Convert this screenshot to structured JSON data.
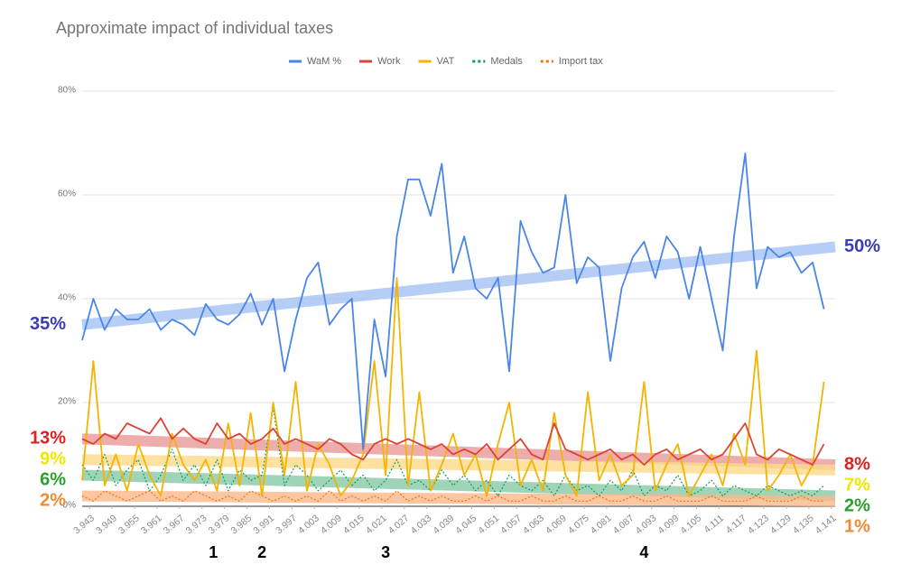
{
  "chart_data": {
    "type": "line",
    "title": "Approximate impact of individual taxes",
    "x": [
      3.941,
      3.944,
      3.947,
      3.95,
      3.953,
      3.956,
      3.959,
      3.962,
      3.965,
      3.968,
      3.971,
      3.974,
      3.977,
      3.98,
      3.983,
      3.986,
      3.989,
      3.992,
      3.995,
      3.998,
      4.001,
      4.004,
      4.007,
      4.01,
      4.013,
      4.016,
      4.019,
      4.022,
      4.025,
      4.028,
      4.031,
      4.034,
      4.037,
      4.04,
      4.043,
      4.046,
      4.049,
      4.052,
      4.055,
      4.058,
      4.061,
      4.064,
      4.067,
      4.07,
      4.073,
      4.076,
      4.079,
      4.082,
      4.085,
      4.088,
      4.091,
      4.094,
      4.097,
      4.1,
      4.103,
      4.106,
      4.109,
      4.112,
      4.115,
      4.118,
      4.121,
      4.124,
      4.127,
      4.13,
      4.133,
      4.136,
      4.139
    ],
    "xlim": [
      3.941,
      4.142
    ],
    "xticks": [
      3.943,
      3.949,
      3.955,
      3.961,
      3.967,
      3.973,
      3.979,
      3.985,
      3.991,
      3.997,
      4.003,
      4.009,
      4.015,
      4.021,
      4.027,
      4.033,
      4.039,
      4.045,
      4.051,
      4.057,
      4.063,
      4.069,
      4.075,
      4.081,
      4.087,
      4.093,
      4.099,
      4.105,
      4.111,
      4.117,
      4.123,
      4.129,
      4.135,
      4.141
    ],
    "ylim": [
      0,
      80
    ],
    "yticks": [
      {
        "value": 0,
        "label": "0%"
      },
      {
        "value": 20,
        "label": "20%"
      },
      {
        "value": 40,
        "label": "40%"
      },
      {
        "value": 60,
        "label": "60%"
      },
      {
        "value": 80,
        "label": "80%"
      }
    ],
    "grid": true,
    "legend": "top",
    "series": [
      {
        "name": "WaM %",
        "color": "#4a86e8",
        "dotted": false,
        "values": [
          32,
          40,
          34,
          38,
          36,
          36,
          38,
          34,
          36,
          35,
          33,
          39,
          36,
          35,
          37,
          41,
          35,
          40,
          26,
          36,
          44,
          47,
          35,
          38,
          40,
          11,
          36,
          25,
          52,
          63,
          63,
          56,
          66,
          45,
          52,
          42,
          40,
          44,
          26,
          55,
          49,
          45,
          46,
          60,
          43,
          48,
          46,
          28,
          42,
          48,
          51,
          44,
          52,
          49,
          40,
          50,
          40,
          30,
          52,
          68,
          42,
          50,
          48,
          49,
          45,
          47,
          38
        ]
      },
      {
        "name": "Work",
        "color": "#db4437",
        "dotted": false,
        "values": [
          13,
          12,
          14,
          13,
          16,
          15,
          14,
          17,
          13,
          15,
          13,
          12,
          16,
          13,
          14,
          12,
          13,
          15,
          12,
          13,
          12,
          11,
          13,
          12,
          10,
          9,
          12,
          13,
          12,
          13,
          12,
          11,
          12,
          10,
          11,
          10,
          12,
          9,
          11,
          13,
          10,
          9,
          16,
          11,
          10,
          9,
          10,
          11,
          9,
          10,
          8,
          10,
          11,
          9,
          10,
          11,
          9,
          10,
          13,
          16,
          10,
          9,
          11,
          10,
          9,
          8,
          12
        ]
      },
      {
        "name": "VAT",
        "color": "#f4b400",
        "dotted": false,
        "values": [
          5,
          28,
          4,
          10,
          3,
          12,
          6,
          2,
          14,
          8,
          5,
          9,
          3,
          16,
          4,
          18,
          2,
          20,
          6,
          24,
          3,
          12,
          8,
          2,
          5,
          10,
          28,
          6,
          44,
          4,
          22,
          3,
          8,
          14,
          6,
          10,
          2,
          12,
          20,
          4,
          9,
          3,
          18,
          6,
          2,
          22,
          5,
          10,
          4,
          6,
          24,
          3,
          8,
          12,
          2,
          6,
          10,
          4,
          14,
          8,
          30,
          3,
          6,
          10,
          4,
          8,
          24
        ]
      },
      {
        "name": "Medals",
        "color": "#0f9d58",
        "dotted": true,
        "values": [
          8,
          5,
          10,
          4,
          7,
          9,
          3,
          6,
          11,
          5,
          8,
          4,
          9,
          3,
          7,
          5,
          6,
          19,
          4,
          8,
          6,
          3,
          5,
          7,
          4,
          6,
          3,
          5,
          9,
          4,
          5,
          3,
          7,
          4,
          6,
          3,
          5,
          2,
          6,
          4,
          3,
          5,
          2,
          6,
          3,
          4,
          2,
          5,
          3,
          7,
          2,
          4,
          3,
          6,
          2,
          3,
          5,
          2,
          4,
          3,
          2,
          4,
          3,
          2,
          3,
          2,
          4
        ]
      },
      {
        "name": "Import tax",
        "color": "#ff6d01",
        "dotted": true,
        "values": [
          2,
          1,
          3,
          2,
          1,
          2,
          3,
          1,
          2,
          1,
          3,
          2,
          1,
          2,
          1,
          3,
          2,
          1,
          2,
          1,
          2,
          1,
          3,
          1,
          2,
          1,
          2,
          1,
          3,
          1,
          2,
          1,
          2,
          1,
          1,
          2,
          1,
          2,
          1,
          1,
          2,
          1,
          1,
          2,
          1,
          1,
          2,
          1,
          1,
          2,
          1,
          1,
          2,
          1,
          1,
          1,
          2,
          1,
          1,
          1,
          2,
          1,
          1,
          1,
          2,
          1,
          1
        ]
      }
    ],
    "trendlines": [
      {
        "color": "#a4c2f4",
        "label_color": "#3c3cb4",
        "values": [
          35,
          50
        ],
        "value_labels": [
          "35%",
          "50%"
        ]
      },
      {
        "color": "#ea9999",
        "label_color": "#e02020",
        "values": [
          13,
          8
        ],
        "value_labels": [
          "13%",
          "8%"
        ]
      },
      {
        "color": "#fbd98a",
        "label_color": "#f2e600",
        "values": [
          9,
          7
        ],
        "value_labels": [
          "9%",
          "7%"
        ]
      },
      {
        "color": "#87c9a6",
        "label_color": "#2ca02c",
        "values": [
          6,
          2
        ],
        "value_labels": [
          "6%",
          "2%"
        ]
      },
      {
        "color": "#f9b98b",
        "label_color": "#f08a30",
        "values": [
          2,
          1
        ],
        "value_labels": [
          "2%",
          "1%"
        ]
      }
    ],
    "annotations": [
      {
        "text": "1",
        "x": 3.976
      },
      {
        "text": "2",
        "x": 3.989
      },
      {
        "text": "3",
        "x": 4.022
      },
      {
        "text": "4",
        "x": 4.091
      }
    ]
  }
}
